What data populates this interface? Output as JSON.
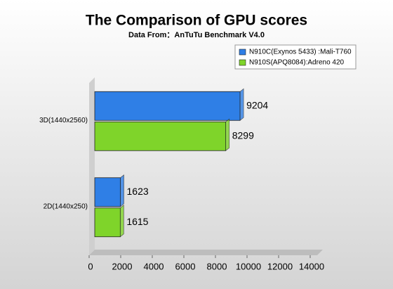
{
  "chart_data": {
    "type": "hbar",
    "title": "The Comparison of GPU scores",
    "subtitle": "Data From：AnTuTu Benchmark V4.0",
    "categories": [
      "3D(1440x2560)",
      "2D(1440x250)"
    ],
    "series": [
      {
        "name": "N910C(Exynos 5433) :Mali-T760",
        "color": "#2f7fe6",
        "values": [
          9204,
          1623
        ]
      },
      {
        "name": "N910S(APQ8084):Adreno 420",
        "color": "#7fd42a",
        "values": [
          8299,
          1615
        ]
      }
    ],
    "xlim": [
      0,
      14000
    ],
    "xticks": [
      0,
      2000,
      4000,
      6000,
      8000,
      10000,
      12000,
      14000
    ]
  }
}
